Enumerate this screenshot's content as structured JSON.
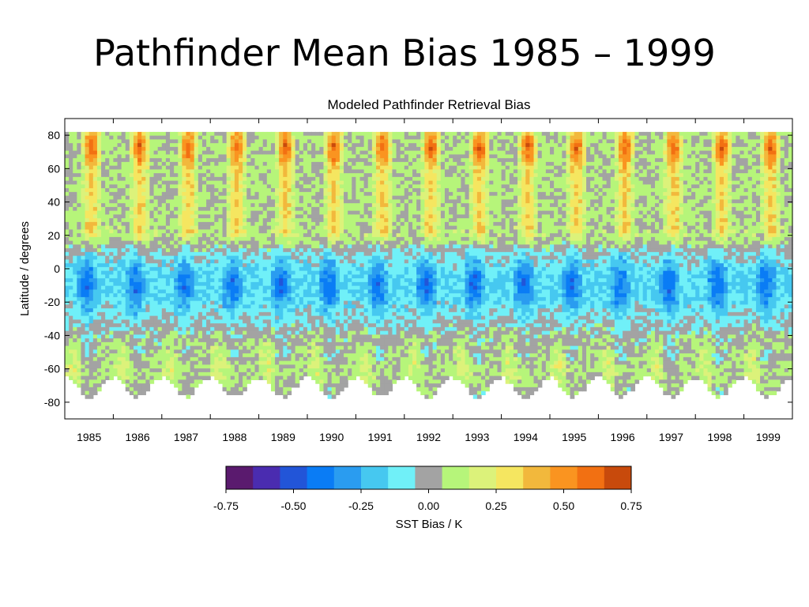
{
  "slide": {
    "title": "Pathfinder Mean Bias 1985 – 1999"
  },
  "chart_data": {
    "type": "heatmap",
    "title": "Modeled Pathfinder Retrieval Bias",
    "xlabel": "",
    "ylabel": "Latitude / degrees",
    "x_categories": [
      "1985",
      "1986",
      "1987",
      "1988",
      "1989",
      "1990",
      "1991",
      "1992",
      "1993",
      "1994",
      "1995",
      "1996",
      "1997",
      "1998",
      "1999"
    ],
    "y_ticks": [
      80,
      60,
      40,
      20,
      0,
      -20,
      -40,
      -60,
      -80
    ],
    "ylim": [
      -90,
      90
    ],
    "lat_coverage": [
      -78,
      82
    ],
    "colorbar": {
      "label": "SST Bias / K",
      "range": [
        -0.75,
        0.75
      ],
      "tick_values": [
        -0.75,
        -0.5,
        -0.25,
        0.0,
        0.25,
        0.5,
        0.75
      ],
      "tick_labels": [
        "-0.75",
        "-0.50",
        "-0.25",
        "0.00",
        "0.25",
        "0.50",
        "0.75"
      ],
      "colors": [
        "#5a1a6e",
        "#4a2cb0",
        "#2255d8",
        "#0a7cf5",
        "#2a9cf0",
        "#46c8f0",
        "#70f0f8",
        "#a3a3a3",
        "#b6f57a",
        "#dcf27a",
        "#f5e660",
        "#f2b83c",
        "#fa9420",
        "#f27012",
        "#c84a0c"
      ]
    },
    "pattern": [
      {
        "band": "high northern latitudes (30 to 82)",
        "bias": "0.00 to 0.50, seasonal plumes peaking near 65-80"
      },
      {
        "band": "tropics (-25 to 10)",
        "bias": "-0.50 to -0.25"
      },
      {
        "band": "southern mid latitudes (-70 to -30)",
        "bias": "0.00 to 0.25 with gray near-zero gaps"
      }
    ]
  }
}
